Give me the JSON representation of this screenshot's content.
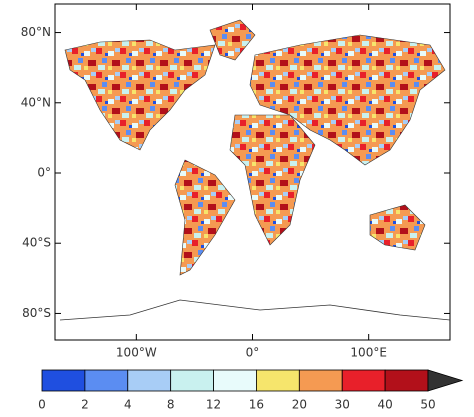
{
  "map": {
    "xlim": [
      -170,
      170
    ],
    "ylim": [
      -90,
      90
    ],
    "yticks": [
      {
        "value": 80,
        "label": "80°N"
      },
      {
        "value": 40,
        "label": "40°N"
      },
      {
        "value": 0,
        "label": "0°"
      },
      {
        "value": -40,
        "label": "40°S"
      },
      {
        "value": -80,
        "label": "80°S"
      }
    ],
    "xticks": [
      {
        "value": -100,
        "label": "100°W"
      },
      {
        "value": 0,
        "label": "0°"
      },
      {
        "value": 100,
        "label": "100°E"
      }
    ]
  },
  "colorbar": {
    "levels": [
      0,
      2,
      4,
      8,
      12,
      16,
      20,
      30,
      40,
      50
    ],
    "colors": [
      "#1f4fe0",
      "#5b8df2",
      "#a8cdf6",
      "#c9f1ef",
      "#e8fbfb",
      "#f6e56c",
      "#f59a52",
      "#e8202a",
      "#b2101a",
      "#333333"
    ]
  }
}
